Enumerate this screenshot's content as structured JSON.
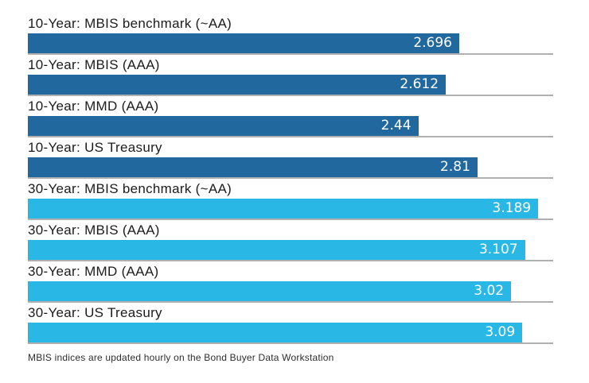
{
  "chart_data": {
    "type": "bar",
    "orientation": "horizontal",
    "title": "",
    "xlabel": "",
    "ylabel": "",
    "xlim": [
      0,
      3.283
    ],
    "grid": false,
    "legend": false,
    "bars": [
      {
        "label": "10-Year: MBIS benchmark (~AA)",
        "value": 2.696,
        "value_label": "2.696",
        "group": "10-year"
      },
      {
        "label": "10-Year: MBIS (AAA)",
        "value": 2.612,
        "value_label": "2.612",
        "group": "10-year"
      },
      {
        "label": "10-Year: MMD (AAA)",
        "value": 2.44,
        "value_label": "2.44",
        "group": "10-year"
      },
      {
        "label": "10-Year: US Treasury",
        "value": 2.81,
        "value_label": "2.81",
        "group": "10-year"
      },
      {
        "label": "30-Year: MBIS benchmark (~AA)",
        "value": 3.189,
        "value_label": "3.189",
        "group": "30-year"
      },
      {
        "label": "30-Year: MBIS (AAA)",
        "value": 3.107,
        "value_label": "3.107",
        "group": "30-year"
      },
      {
        "label": "30-Year: MMD (AAA)",
        "value": 3.02,
        "value_label": "3.02",
        "group": "30-year"
      },
      {
        "label": "30-Year: US Treasury",
        "value": 3.09,
        "value_label": "3.09",
        "group": "30-year"
      }
    ],
    "colors": {
      "ten_year": "#20689E",
      "thirty_year": "#29B8E5",
      "baseline": "#B0B0B0",
      "value_text": "#FFFFFF",
      "label_text": "#1C1C1C"
    },
    "footnote": "MBIS indices are updated hourly on the Bond Buyer Data Workstation"
  }
}
